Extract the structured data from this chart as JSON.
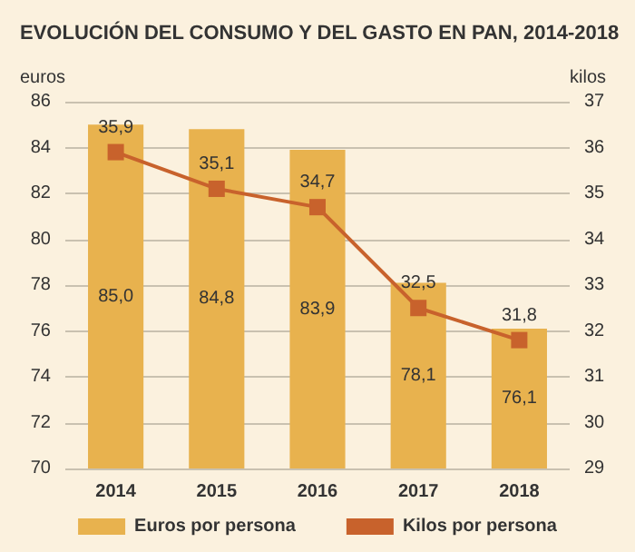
{
  "chart_data": {
    "type": "bar",
    "title": "EVOLUCIÓN DEL CONSUMO Y DEL GASTO EN PAN, 2014-2018",
    "categories": [
      "2014",
      "2015",
      "2016",
      "2017",
      "2018"
    ],
    "series": [
      {
        "name": "Euros por persona",
        "color": "#e8b24e",
        "values": [
          85.0,
          84.8,
          83.9,
          78.1,
          76.1
        ],
        "value_labels": [
          "85,0",
          "84,8",
          "83,9",
          "78,1",
          "76,1"
        ]
      },
      {
        "name": "Kilos por persona",
        "type": "line",
        "axis": "y2",
        "color": "#c8622c",
        "marker": "square",
        "values": [
          35.9,
          35.1,
          34.7,
          32.5,
          31.8
        ],
        "value_labels": [
          "35,9",
          "35,1",
          "34,7",
          "32,5",
          "31,8"
        ]
      }
    ],
    "ylabel": "euros",
    "y2label": "kilos",
    "ylim": [
      70,
      86
    ],
    "yticks": [
      70,
      72,
      74,
      76,
      78,
      80,
      82,
      84,
      86
    ],
    "y2lim": [
      29,
      37
    ],
    "y2ticks": [
      29,
      30,
      31,
      32,
      33,
      34,
      35,
      36,
      37
    ],
    "grid": "y",
    "legend": "bottom"
  }
}
